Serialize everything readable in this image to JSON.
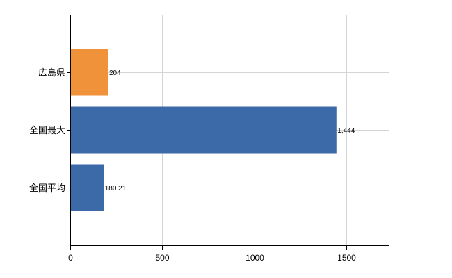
{
  "chart_data": {
    "type": "bar",
    "orientation": "horizontal",
    "categories": [
      "広島県",
      "全国最大",
      "全国平均"
    ],
    "values": [
      204,
      1444,
      180.21
    ],
    "value_labels": [
      "204",
      "1,444",
      "180.21"
    ],
    "bar_colors": [
      "#F0923A",
      "#3C69A8",
      "#3C69A8"
    ],
    "xlim": [
      0,
      1730
    ],
    "xticks": [
      0,
      500,
      1000,
      1500
    ],
    "xtick_labels": [
      "0",
      "500",
      "1000",
      "1500"
    ],
    "grid": true,
    "legend": "none",
    "title": "",
    "xlabel": "",
    "ylabel": ""
  }
}
